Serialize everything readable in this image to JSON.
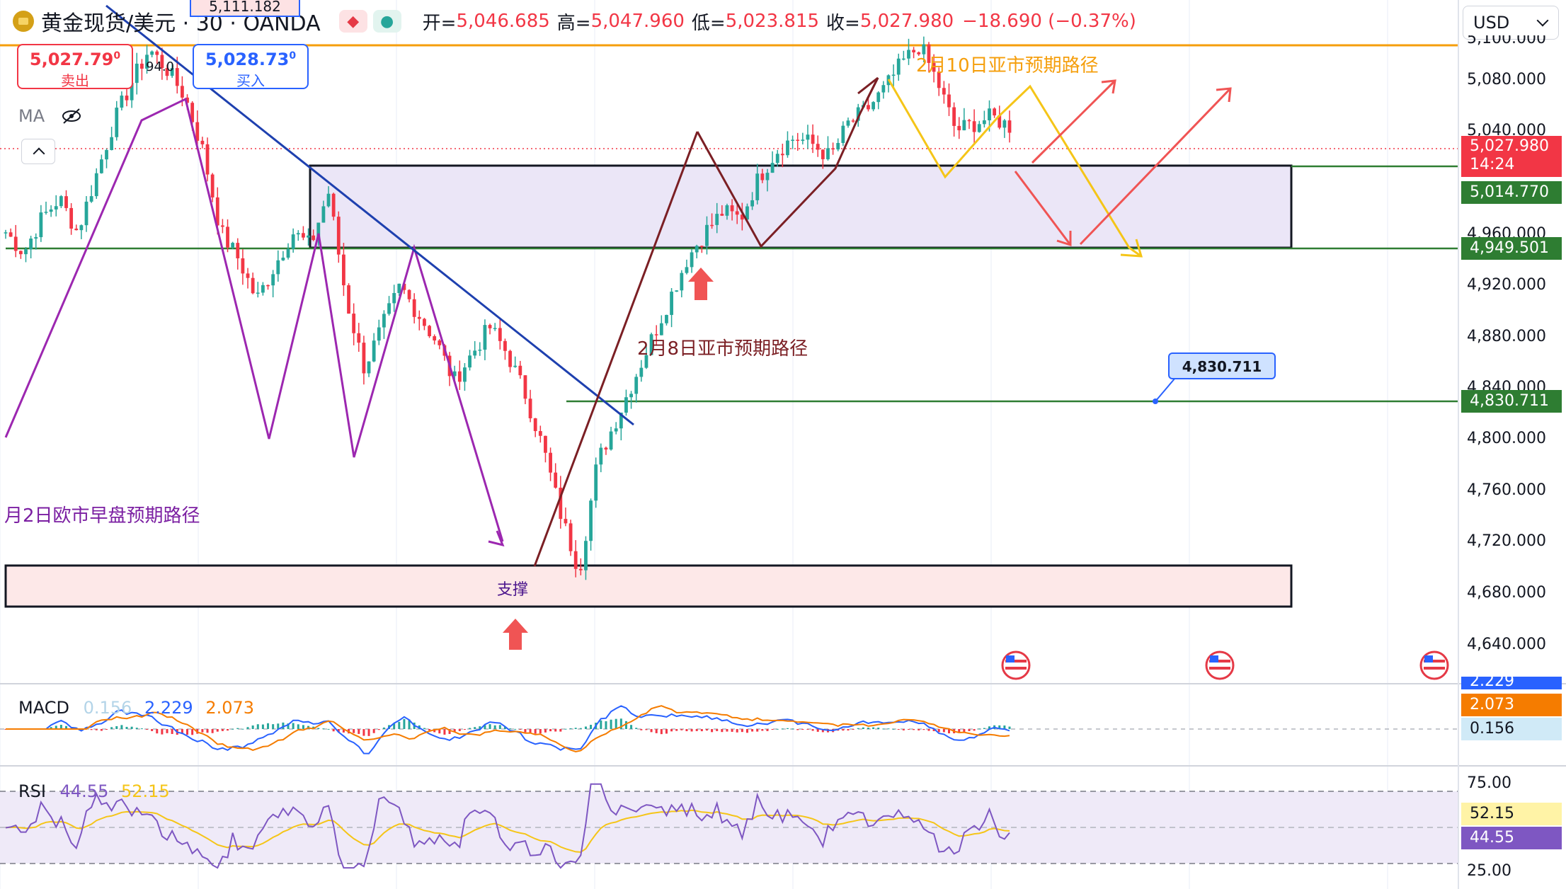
{
  "header": {
    "title": "黄金现货/美元 · 30 · OANDA",
    "open_label": "开=",
    "open_value": "5,046.685",
    "high_label": "高=",
    "high_value": "5,047.960",
    "low_label": "低=",
    "low_value": "5,023.815",
    "close_label": "收=",
    "close_value": "5,027.980",
    "change": "−18.690 (−0.37%)"
  },
  "currency": "USD",
  "sell": {
    "price": "5,027.79",
    "price_sup": "0",
    "label": "卖出"
  },
  "buy": {
    "price": "5,028.73",
    "price_sup": "0",
    "label": "买入"
  },
  "spread": "94.0",
  "ma_label": "MA",
  "icons": {
    "symbol": "gold-coin-icon",
    "red_pill": "alert-icon",
    "green_pill": "live-dot-icon",
    "visibility": "eye-off-icon",
    "collapse": "chevron-up-icon",
    "event": "us-flag-icon"
  },
  "annotations": {
    "feb10": "2月10日亚市预期路径",
    "feb8": "2月8日亚市预期路径",
    "feb2": "月2日欧市早盘预期路径",
    "support": "支撑",
    "top_hidden_price": "5,111.182",
    "level_callout": "4,830.711"
  },
  "price_axis": {
    "ticks": [
      "5,080.000",
      "5,040.000",
      "4,960.000",
      "4,920.000",
      "4,880.000",
      "4,840.000",
      "4,800.000",
      "4,760.000",
      "4,720.000",
      "4,680.000",
      "4,640.000"
    ],
    "last_price": "5,027.980",
    "countdown": "14:24",
    "level_upper": "5,014.770",
    "level_mid": "4,949.501",
    "level_low": "4,830.711",
    "partial_top": "5,100.000"
  },
  "macd": {
    "label": "MACD",
    "v1": "0.156",
    "v2": "2.229",
    "v3": "2.073",
    "tag_top": "2.229"
  },
  "rsi": {
    "label": "RSI",
    "v1": "44.55",
    "v2": "52.15",
    "tick_top": "75.00",
    "tick_bottom": "25.00"
  },
  "colors": {
    "up": "#26a69a",
    "down": "#f23645",
    "purple_path": "#9c27b0",
    "blue_trend": "#1e40af",
    "dark_red_path": "#7b1f24",
    "yellow_path": "#f5c518",
    "red_arrow": "#f05454",
    "green_level": "#2e7d32",
    "orange_line": "#f59e0b"
  },
  "chart_data": {
    "type": "candlestick",
    "symbol": "黄金现货/美元",
    "timeframe": "30",
    "source": "OANDA",
    "ohlc_current": {
      "open": 5046.685,
      "high": 5047.96,
      "low": 5023.815,
      "close": 5027.98,
      "change": -18.69,
      "change_pct": -0.37
    },
    "approx_close_path": [
      4950,
      4935,
      4960,
      4975,
      4950,
      4990,
      5030,
      5060,
      5085,
      5070,
      5050,
      5010,
      4950,
      4930,
      4900,
      4925,
      4950,
      4940,
      4980,
      4900,
      4850,
      4880,
      4910,
      4890,
      4870,
      4840,
      4860,
      4880,
      4860,
      4830,
      4790,
      4740,
      4700,
      4780,
      4810,
      4840,
      4870,
      4900,
      4930,
      4950,
      4965,
      4960,
      4990,
      5010,
      5020,
      5015,
      5005,
      5030,
      5040,
      5055,
      5075,
      5088,
      5060,
      5025,
      5030,
      5035,
      5028
    ],
    "levels": [
      5014.77,
      4949.501,
      4830.711
    ],
    "zones": [
      {
        "from": 4949.501,
        "to": 5014.77
      },
      {
        "from": 4672,
        "to": 4705
      }
    ],
    "price_ylim": [
      4620,
      5115
    ],
    "macd": {
      "values": [
        0.156,
        2.229,
        2.073
      ]
    },
    "rsi": {
      "values": [
        44.55,
        52.15
      ],
      "bands": [
        25,
        75
      ]
    }
  }
}
